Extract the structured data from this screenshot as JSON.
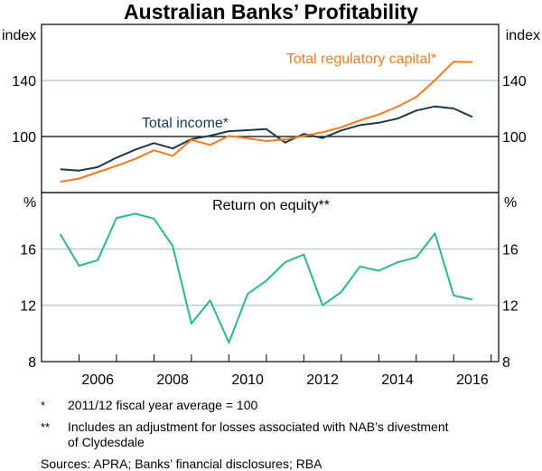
{
  "chart_data": [
    {
      "type": "line",
      "title": "Australian Banks’ Profitability",
      "ylabel_left": "index",
      "ylabel_right": "index",
      "ylim": [
        60,
        180
      ],
      "yticks": [
        100,
        140
      ],
      "reference_line": 100,
      "grid": true,
      "x": [
        2005.0,
        2005.5,
        2006.0,
        2006.5,
        2007.0,
        2007.5,
        2008.0,
        2008.5,
        2009.0,
        2009.5,
        2010.0,
        2010.5,
        2011.0,
        2011.5,
        2012.0,
        2012.5,
        2013.0,
        2013.5,
        2014.0,
        2014.5,
        2015.0,
        2015.5,
        2016.0
      ],
      "series": [
        {
          "name": "Total income*",
          "color": "#1b3a4b",
          "values": [
            76.6,
            75.7,
            78.1,
            84.9,
            90.6,
            95.3,
            91.5,
            98.1,
            100.6,
            103.8,
            104.5,
            105.3,
            95.7,
            101.9,
            98.9,
            104.3,
            108.1,
            109.8,
            112.8,
            118.5,
            121.5,
            120.0,
            114.0
          ]
        },
        {
          "name": "Total regulatory capital*",
          "color": "#f47b20",
          "values": [
            67.7,
            70.0,
            74.5,
            79.1,
            84.0,
            90.2,
            86.2,
            97.7,
            94.0,
            100.4,
            98.7,
            96.8,
            97.9,
            100.4,
            103.0,
            106.6,
            111.5,
            115.7,
            121.3,
            128.1,
            140.2,
            153.4,
            153.0
          ]
        }
      ]
    },
    {
      "type": "line",
      "ylabel_left": "%",
      "ylabel_right": "%",
      "ylim": [
        8,
        20
      ],
      "yticks": [
        8,
        12,
        16
      ],
      "grid": true,
      "xlim": [
        2004.5,
        2016.7
      ],
      "xtick_labels": [
        "2006",
        "2008",
        "2010",
        "2012",
        "2014",
        "2016"
      ],
      "x": [
        2005.0,
        2005.5,
        2006.0,
        2006.5,
        2007.0,
        2007.5,
        2008.0,
        2008.5,
        2009.0,
        2009.5,
        2010.0,
        2010.5,
        2011.0,
        2011.5,
        2012.0,
        2012.5,
        2013.0,
        2013.5,
        2014.0,
        2014.5,
        2015.0,
        2015.5,
        2016.0
      ],
      "series": [
        {
          "name": "Return on equity**",
          "color": "#2db88a",
          "values": [
            17.05,
            14.8,
            15.2,
            18.2,
            18.5,
            18.15,
            16.2,
            10.7,
            12.35,
            9.35,
            12.8,
            13.75,
            15.05,
            15.6,
            12.0,
            12.95,
            14.75,
            14.45,
            15.05,
            15.4,
            17.1,
            12.7,
            12.4
          ]
        }
      ]
    }
  ],
  "notes": [
    {
      "marker": "*",
      "text": "2011/12 fiscal year average = 100"
    },
    {
      "marker": "**",
      "text": "Includes an adjustment for losses associated with NAB’s divestment",
      "text2": "of Clydesdale"
    }
  ],
  "sources": "Sources:  APRA; Banks’ financial disclosures; RBA",
  "colors": {
    "grid": "#b9cdd9",
    "axis": "#000000"
  }
}
